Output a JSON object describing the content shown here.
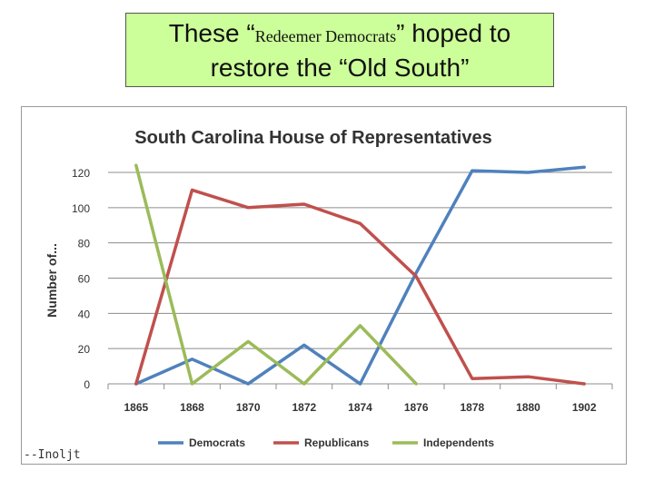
{
  "slide": {
    "title_part1": "These “",
    "title_part2": "Redeemer Democrats",
    "title_part3": "” hoped to",
    "title_line2": "restore the “Old South”",
    "credit": "--Inoljt"
  },
  "colors": {
    "title_bg": "#ccff99",
    "democrats": "#4f81bd",
    "republicans": "#c0504d",
    "independents": "#9bbb59"
  },
  "chart_data": {
    "type": "line",
    "title": "South Carolina House of Representatives",
    "xlabel": "",
    "ylabel": "Number of...",
    "categories": [
      "1865",
      "1868",
      "1870",
      "1872",
      "1874",
      "1876",
      "1878",
      "1880",
      "1902"
    ],
    "ylim": [
      0,
      120
    ],
    "yticks": [
      0,
      20,
      40,
      60,
      80,
      100,
      120
    ],
    "grid": true,
    "legend": "bottom",
    "series": [
      {
        "name": "Democrats",
        "color": "#4f81bd",
        "values": [
          0,
          14,
          0,
          22,
          0,
          63,
          121,
          120,
          123
        ]
      },
      {
        "name": "Republicans",
        "color": "#c0504d",
        "values": [
          0,
          110,
          100,
          102,
          91,
          61,
          3,
          4,
          0
        ]
      },
      {
        "name": "Independents",
        "color": "#9bbb59",
        "values": [
          124,
          0,
          24,
          0,
          33,
          0,
          null,
          null,
          null
        ]
      }
    ]
  }
}
